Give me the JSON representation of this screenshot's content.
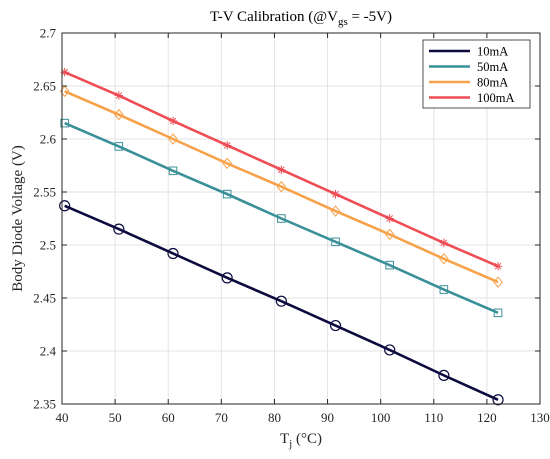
{
  "chart_data": {
    "type": "line",
    "title_parts": {
      "prefix": "T-V Calibration (@V",
      "subscript": "gs",
      "suffix": " = -5V)"
    },
    "xlabel_parts": {
      "main": "T",
      "subscript": "j",
      "suffix": " (°C)"
    },
    "ylabel": "Body Diode Voltage (V)",
    "xlim": [
      40,
      130
    ],
    "ylim": [
      2.35,
      2.7
    ],
    "xticks": [
      40,
      50,
      60,
      70,
      80,
      90,
      100,
      110,
      120,
      130
    ],
    "yticks": [
      2.35,
      2.4,
      2.45,
      2.5,
      2.55,
      2.6,
      2.65,
      2.7
    ],
    "ytick_labels": [
      "2.35",
      "2.4",
      "2.45",
      "2.5",
      "2.55",
      "2.6",
      "2.65",
      "2.7"
    ],
    "grid": true,
    "legend_position": "top-right",
    "x": [
      40.5,
      50.7,
      60.9,
      71.1,
      81.3,
      91.5,
      101.7,
      111.9,
      122.1
    ],
    "series": [
      {
        "name": "10mA",
        "color": "#0c0a3e",
        "marker": "circle",
        "values": [
          2.537,
          2.515,
          2.492,
          2.469,
          2.447,
          2.424,
          2.401,
          2.377,
          2.354
        ]
      },
      {
        "name": "50mA",
        "color": "#3a9098",
        "marker": "square",
        "values": [
          2.615,
          2.593,
          2.57,
          2.548,
          2.525,
          2.503,
          2.481,
          2.458,
          2.436
        ]
      },
      {
        "name": "80mA",
        "color": "#f7a24a",
        "marker": "diamond",
        "values": [
          2.645,
          2.623,
          2.6,
          2.577,
          2.555,
          2.532,
          2.51,
          2.487,
          2.465
        ]
      },
      {
        "name": "100mA",
        "color": "#ee4d55",
        "marker": "asterisk",
        "values": [
          2.663,
          2.641,
          2.617,
          2.594,
          2.571,
          2.548,
          2.525,
          2.502,
          2.48
        ]
      }
    ]
  }
}
